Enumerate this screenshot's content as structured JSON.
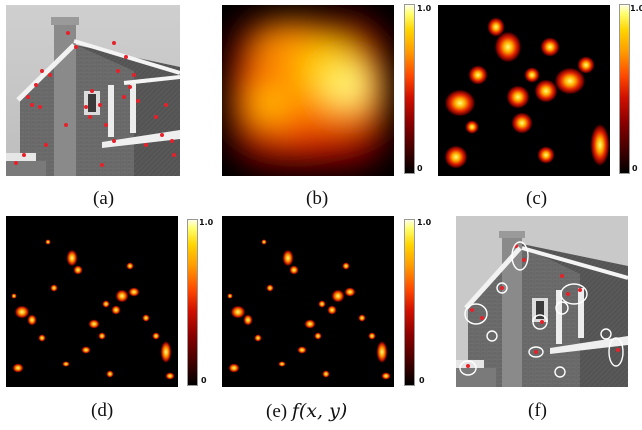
{
  "figure": {
    "captions": {
      "a": "(a)",
      "b": "(b)",
      "c": "(c)",
      "d": "(d)",
      "e_prefix": "(e)",
      "e_formula": "f(x, y)",
      "f": "(f)"
    },
    "colorbar": {
      "max_label": "1.0",
      "min_label": "0"
    },
    "colors": {
      "colormap": [
        "#000000",
        "#8a0000",
        "#ff4a00",
        "#ffd400",
        "#ffffe8"
      ],
      "keypoint_marker": "#e8202a",
      "contour": "#ffffff"
    }
  }
}
